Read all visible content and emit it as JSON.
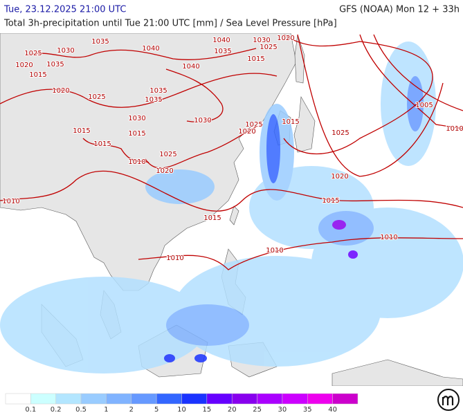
{
  "header": {
    "valid_time": "Tue, 23.12.2025 21:00 UTC",
    "model_run": "GFS (NOAA) Mon 12 + 33h",
    "title": "Total 3h-precipitation until Tue 21:00 UTC [mm] / Sea Level Pressure [hPa]"
  },
  "isobar_labels": [
    1025,
    1030,
    1035,
    1040,
    1040,
    1035,
    1030,
    1020,
    1025,
    1020,
    1015,
    1035,
    1015,
    1040,
    1020,
    1025,
    1035,
    1035,
    1030,
    1030,
    1015,
    1015,
    1015,
    1025,
    1020,
    1015,
    1025,
    1005,
    1010,
    1010,
    1025,
    1020,
    1020,
    1010,
    1015,
    1015,
    1010,
    1010,
    1010
  ],
  "legend": {
    "labels": [
      "0.1",
      "0.2",
      "0.5",
      "1",
      "2",
      "5",
      "10",
      "15",
      "20",
      "25",
      "30",
      "35",
      "40"
    ],
    "colors": [
      "#ffffff",
      "#ccffff",
      "#b3e6ff",
      "#99ccff",
      "#80b3ff",
      "#6699ff",
      "#3366ff",
      "#1a33ff",
      "#6600ff",
      "#8800ee",
      "#aa00ff",
      "#cc00ff",
      "#ee00ee",
      "#cc00cc"
    ]
  }
}
